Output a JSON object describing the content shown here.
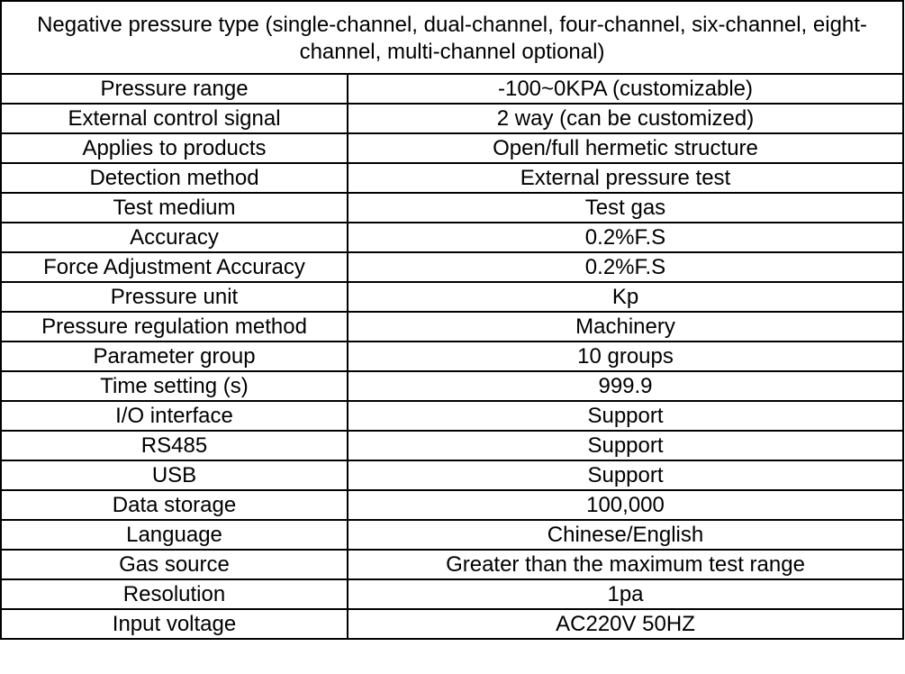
{
  "header": "Negative pressure type (single-channel, dual-channel, four-channel, six-channel, eight-channel, multi-channel optional)",
  "rows": [
    {
      "label": "Pressure range",
      "value": "-100~0KPA (customizable)"
    },
    {
      "label": "External control signal",
      "value": "2 way (can be customized)"
    },
    {
      "label": "Applies to products",
      "value": "Open/full hermetic structure"
    },
    {
      "label": "Detection method",
      "value": "External pressure test"
    },
    {
      "label": "Test medium",
      "value": "Test gas"
    },
    {
      "label": "Accuracy",
      "value": "0.2%F.S"
    },
    {
      "label": "Force Adjustment Accuracy",
      "value": "0.2%F.S"
    },
    {
      "label": "Pressure unit",
      "value": "Kp"
    },
    {
      "label": "Pressure regulation method",
      "value": "Machinery"
    },
    {
      "label": "Parameter group",
      "value": "10 groups"
    },
    {
      "label": "Time setting (s)",
      "value": "999.9"
    },
    {
      "label": "I/O interface",
      "value": "Support"
    },
    {
      "label": "RS485",
      "value": "Support"
    },
    {
      "label": "USB",
      "value": "Support"
    },
    {
      "label": "Data storage",
      "value": "100,000"
    },
    {
      "label": "Language",
      "value": "Chinese/English"
    },
    {
      "label": "Gas source",
      "value": "Greater than the maximum test range"
    },
    {
      "label": "Resolution",
      "value": "1pa"
    },
    {
      "label": "Input voltage",
      "value": "AC220V 50HZ"
    }
  ]
}
